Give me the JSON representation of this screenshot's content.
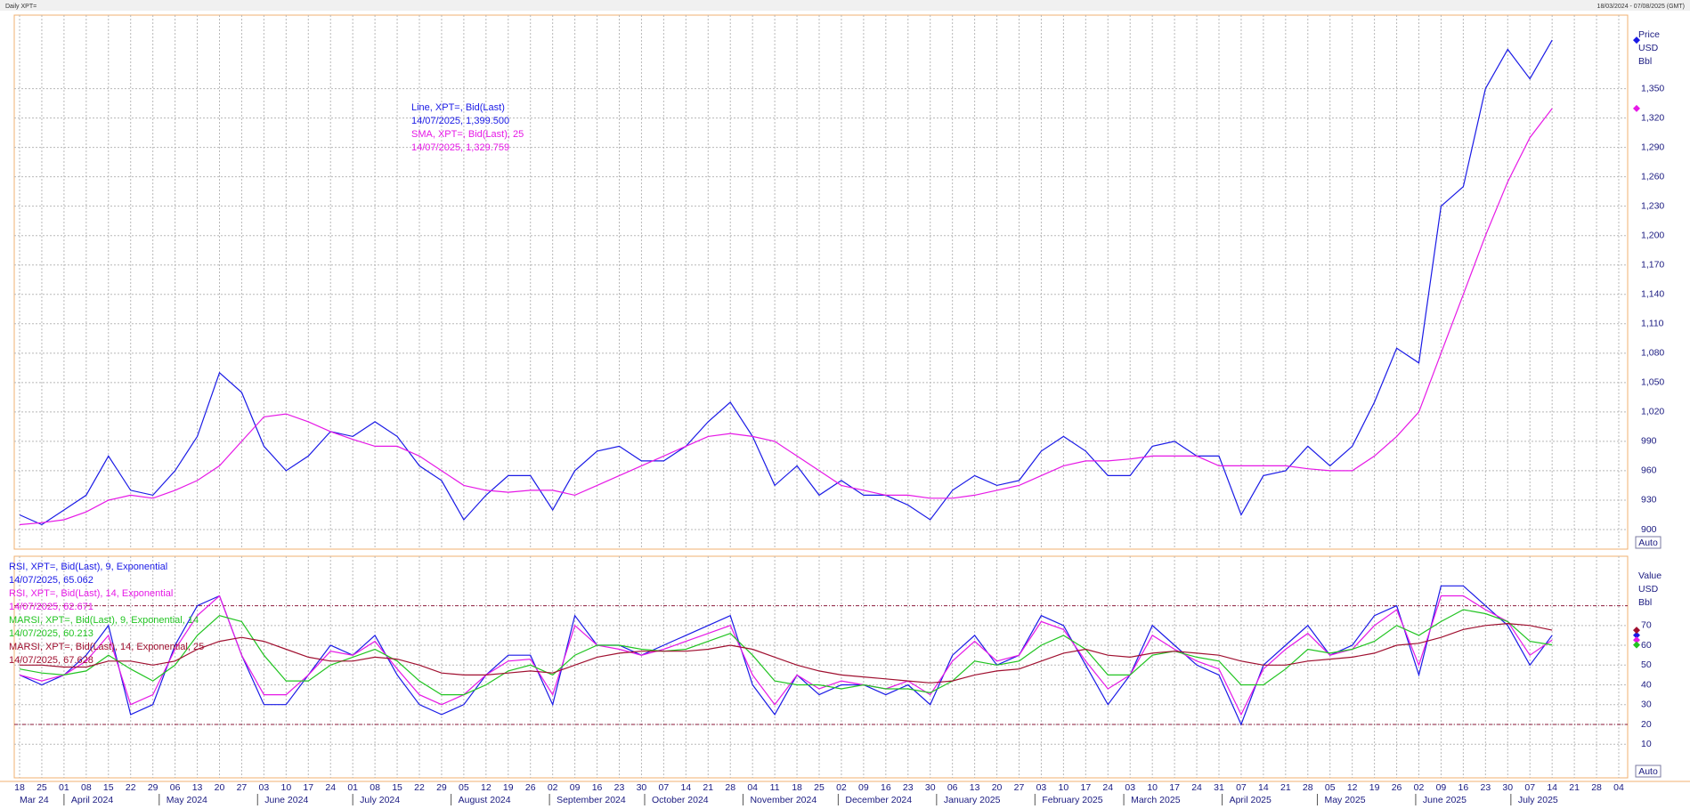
{
  "header": {
    "title": "Daily XPT=",
    "range": "18/03/2024 - 07/08/2025 (GMT)"
  },
  "x_axis": {
    "categories": [
      "18",
      "25",
      "01",
      "08",
      "15",
      "22",
      "29",
      "06",
      "13",
      "20",
      "27",
      "03",
      "10",
      "17",
      "24",
      "01",
      "08",
      "15",
      "22",
      "29",
      "05",
      "12",
      "19",
      "26",
      "02",
      "09",
      "16",
      "23",
      "30",
      "07",
      "14",
      "21",
      "28",
      "04",
      "11",
      "18",
      "25",
      "02",
      "09",
      "16",
      "23",
      "30",
      "06",
      "13",
      "20",
      "27",
      "03",
      "10",
      "17",
      "24",
      "03",
      "10",
      "17",
      "24",
      "31",
      "07",
      "14",
      "21",
      "28",
      "05",
      "12",
      "19",
      "26",
      "02",
      "09",
      "16",
      "23",
      "30",
      "07",
      "14",
      "21",
      "28",
      "04"
    ],
    "months": [
      "Mar 24",
      "April 2024",
      "May 2024",
      "June 2024",
      "July 2024",
      "August 2024",
      "September 2024",
      "October 2024",
      "November 2024",
      "December 2024",
      "January 2025",
      "February 2025",
      "March 2025",
      "April 2025",
      "May 2025",
      "June 2025",
      "July 2025"
    ]
  },
  "chart_data": [
    {
      "type": "line",
      "units": [
        "Price",
        "USD",
        "Bbl"
      ],
      "scale_mode": "Auto",
      "ylim": [
        880,
        1425
      ],
      "yticks": [
        900,
        930,
        960,
        990,
        {
          "value": 1020,
          "label": "1,020"
        },
        {
          "value": 1050,
          "label": "1,050"
        },
        {
          "value": 1080,
          "label": "1,080"
        },
        {
          "value": 1110,
          "label": "1,110"
        },
        {
          "value": 1140,
          "label": "1,140"
        },
        {
          "value": 1170,
          "label": "1,170"
        },
        {
          "value": 1200,
          "label": "1,200"
        },
        {
          "value": 1230,
          "label": "1,230"
        },
        {
          "value": 1260,
          "label": "1,260"
        },
        {
          "value": 1290,
          "label": "1,290"
        },
        {
          "value": 1320,
          "label": "1,320"
        },
        {
          "value": 1350,
          "label": "1,350"
        }
      ],
      "grid": true,
      "series": [
        {
          "name": "Line, XPT=, Bid(Last)",
          "last": "14/07/2025, 1,399.500",
          "color": "#1a1ae6",
          "values": [
            915,
            905,
            920,
            935,
            975,
            940,
            935,
            960,
            995,
            1060,
            1040,
            985,
            960,
            975,
            1000,
            995,
            1010,
            995,
            965,
            950,
            910,
            935,
            955,
            955,
            920,
            960,
            980,
            985,
            970,
            970,
            985,
            1010,
            1030,
            995,
            945,
            965,
            935,
            950,
            935,
            935,
            925,
            910,
            940,
            955,
            945,
            950,
            980,
            995,
            980,
            955,
            955,
            985,
            990,
            975,
            975,
            915,
            955,
            960,
            985,
            965,
            985,
            1030,
            1085,
            1070,
            1230,
            1250,
            1350,
            1390,
            1360,
            1399.5,
            null,
            null,
            null
          ]
        },
        {
          "name": "SMA, XPT=, Bid(Last),  25",
          "last": "14/07/2025, 1,329.759",
          "color": "#e619e6",
          "values": [
            905,
            907,
            910,
            918,
            930,
            935,
            932,
            940,
            950,
            965,
            990,
            1015,
            1018,
            1010,
            1000,
            992,
            985,
            985,
            975,
            960,
            945,
            940,
            938,
            940,
            940,
            935,
            945,
            955,
            965,
            975,
            985,
            995,
            998,
            995,
            990,
            975,
            960,
            945,
            940,
            935,
            935,
            932,
            932,
            935,
            940,
            945,
            955,
            965,
            970,
            970,
            972,
            975,
            975,
            975,
            965,
            965,
            965,
            965,
            962,
            960,
            960,
            975,
            995,
            1020,
            1080,
            1140,
            1200,
            1255,
            1300,
            1329.759,
            null,
            null,
            null
          ]
        }
      ]
    },
    {
      "type": "line",
      "units": [
        "Value",
        "USD",
        "Bbl"
      ],
      "scale_mode": "Auto",
      "ylim": [
        -7,
        105
      ],
      "yticks": [
        10,
        20,
        30,
        40,
        50,
        60,
        70
      ],
      "reference_lines": [
        20,
        80
      ],
      "reference_color": "#8b1a3a",
      "grid": true,
      "series": [
        {
          "name": "RSI, XPT=, Bid(Last),  9, Exponential",
          "last": "14/07/2025, 65.062",
          "color": "#1a1ae6",
          "values": [
            45,
            40,
            45,
            55,
            70,
            25,
            30,
            60,
            80,
            85,
            55,
            30,
            30,
            45,
            60,
            55,
            65,
            45,
            30,
            25,
            30,
            45,
            55,
            55,
            30,
            75,
            60,
            60,
            55,
            60,
            65,
            70,
            75,
            40,
            25,
            45,
            35,
            40,
            40,
            35,
            40,
            30,
            55,
            65,
            50,
            55,
            75,
            70,
            50,
            30,
            45,
            70,
            60,
            50,
            45,
            20,
            50,
            60,
            70,
            55,
            60,
            75,
            80,
            45,
            90,
            90,
            80,
            70,
            50,
            65.062,
            null,
            null,
            null
          ]
        },
        {
          "name": "RSI, XPT=, Bid(Last),  14, Exponential",
          "last": "14/07/2025, 62.671",
          "color": "#e619e6",
          "values": [
            45,
            42,
            45,
            52,
            65,
            30,
            35,
            58,
            75,
            85,
            55,
            35,
            35,
            45,
            57,
            55,
            62,
            48,
            35,
            30,
            35,
            45,
            52,
            53,
            35,
            70,
            60,
            58,
            55,
            58,
            62,
            66,
            70,
            45,
            30,
            45,
            38,
            42,
            40,
            38,
            42,
            35,
            52,
            62,
            52,
            55,
            72,
            68,
            52,
            38,
            45,
            65,
            58,
            52,
            48,
            25,
            48,
            58,
            66,
            55,
            58,
            70,
            78,
            50,
            85,
            85,
            78,
            72,
            55,
            62.671,
            null,
            null,
            null
          ]
        },
        {
          "name": "MARSI, XPT=, Bid(Last),  9, Exponential, 14",
          "last": "14/07/2025, 60.213",
          "color": "#22c422",
          "values": [
            48,
            46,
            45,
            47,
            55,
            48,
            42,
            50,
            65,
            75,
            72,
            55,
            42,
            42,
            50,
            54,
            58,
            52,
            42,
            35,
            35,
            40,
            47,
            50,
            45,
            55,
            60,
            60,
            58,
            57,
            58,
            62,
            66,
            55,
            42,
            40,
            40,
            38,
            40,
            38,
            38,
            36,
            42,
            52,
            50,
            52,
            60,
            65,
            58,
            45,
            45,
            55,
            57,
            54,
            52,
            40,
            40,
            48,
            58,
            56,
            58,
            62,
            70,
            65,
            72,
            78,
            76,
            72,
            62,
            60.213,
            null,
            null,
            null
          ]
        },
        {
          "name": "MARSI, XPT=, Bid(Last),  14, Exponential, 25",
          "last": "14/07/2025, 67.628",
          "color": "#a01030",
          "values": [
            50,
            50,
            49,
            49,
            52,
            52,
            50,
            52,
            58,
            62,
            64,
            62,
            58,
            54,
            52,
            52,
            54,
            53,
            50,
            46,
            45,
            45,
            46,
            47,
            46,
            50,
            54,
            56,
            57,
            57,
            57,
            58,
            60,
            58,
            54,
            50,
            47,
            45,
            44,
            43,
            42,
            41,
            42,
            45,
            47,
            48,
            52,
            56,
            58,
            55,
            54,
            56,
            57,
            56,
            55,
            52,
            50,
            50,
            52,
            53,
            54,
            56,
            60,
            61,
            64,
            68,
            70,
            71,
            70,
            67.628,
            null,
            null,
            null
          ]
        }
      ]
    }
  ]
}
